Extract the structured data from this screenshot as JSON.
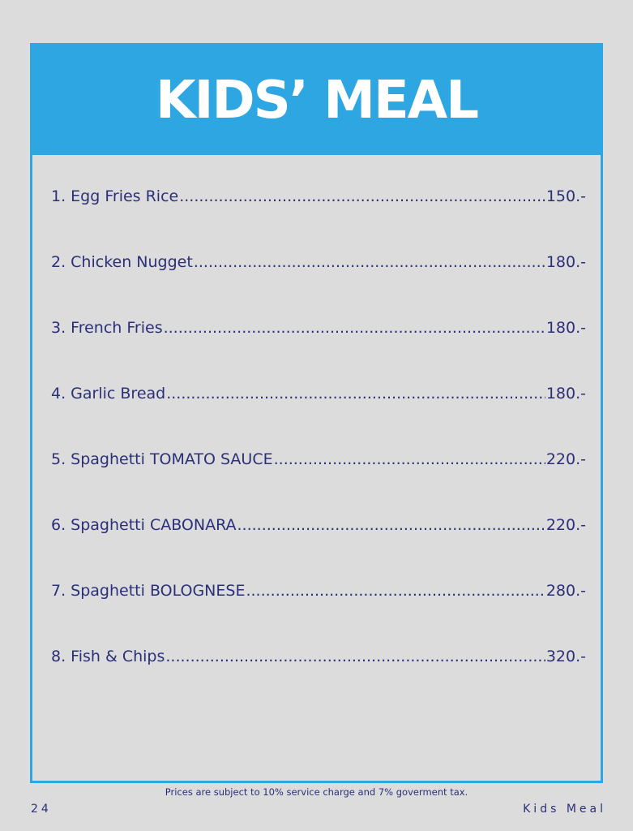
{
  "header": {
    "title": "KIDS’ MEAL"
  },
  "menu": {
    "items": [
      {
        "name": "1. Egg Fries Rice",
        "price": "150.-"
      },
      {
        "name": "2. Chicken Nugget",
        "price": "180.-"
      },
      {
        "name": "3. French Fries",
        "price": "180.-"
      },
      {
        "name": "4. Garlic Bread",
        "price": "180.-"
      },
      {
        "name": "5. Spaghetti TOMATO SAUCE",
        "price": "220.-"
      },
      {
        "name": "6. Spaghetti CABONARA",
        "price": "220.-"
      },
      {
        "name": "7. Spaghetti BOLOGNESE",
        "price": "280.-"
      },
      {
        "name": "8. Fish & Chips",
        "price": "320.-"
      }
    ]
  },
  "footer": {
    "note": "Prices are subject to 10% service charge and 7% goverment tax.",
    "page_number": "24",
    "section": "Kids Meal"
  },
  "colors": {
    "banner": "#2ea6e1",
    "text": "#2b2f78",
    "background": "#dcdcdc"
  }
}
